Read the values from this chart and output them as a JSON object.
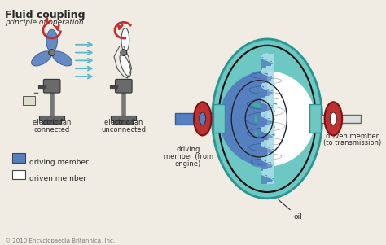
{
  "title": "Fluid coupling",
  "subtitle": "principle of operation",
  "bg_color": "#f0ece4",
  "fan1_label_line1": "electric fan",
  "fan1_label_line2": "connected",
  "fan2_label_line1": "electric fan",
  "fan2_label_line2": "unconnected",
  "drive_label_line1": "driving",
  "drive_label_line2": "member (from",
  "drive_label_line3": "engine)",
  "driven_label_line1": "driven member",
  "driven_label_line2": "(to transmission)",
  "oil_label": "oil",
  "legend_driving": "driving member",
  "legend_driven": "driven member",
  "copyright": "© 2010 Encyclopaedia Britannica, Inc.",
  "color_teal": "#6dc8c4",
  "color_teal_dark": "#2a9490",
  "color_blue": "#5580c0",
  "color_blue_dark": "#3a5a90",
  "color_light_blue_arrow": "#5ab8d0",
  "color_red": "#c03030",
  "color_dark": "#2a2a2a",
  "color_white": "#ffffff",
  "color_gray": "#777777",
  "color_gray_dark": "#444444",
  "color_gray_mid": "#888888",
  "color_arrow_teal": "#3aada0",
  "color_wavy": "#a8dce8"
}
